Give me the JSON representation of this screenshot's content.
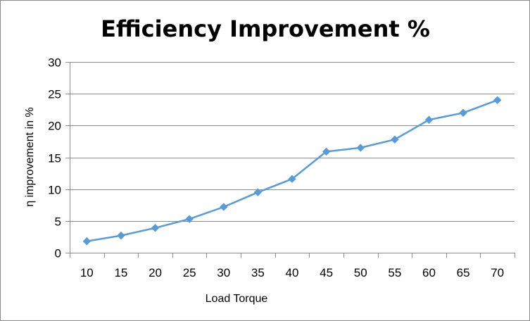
{
  "chart_data": {
    "type": "line",
    "title": "Efficiency Improvement %",
    "xlabel": "Load Torque",
    "ylabel": "η improvement in %",
    "categories": [
      "10",
      "15",
      "20",
      "25",
      "30",
      "35",
      "40",
      "45",
      "50",
      "55",
      "60",
      "65",
      "70"
    ],
    "series": [
      {
        "values": [
          1.8,
          2.7,
          3.9,
          5.3,
          7.2,
          9.5,
          11.6,
          15.9,
          16.5,
          17.8,
          20.9,
          22.0,
          24.0
        ],
        "color": "#5B9BD5",
        "marker": "diamond"
      }
    ],
    "ylim": [
      0,
      30
    ],
    "yticks": [
      "0",
      "5",
      "10",
      "15",
      "20",
      "25",
      "30"
    ],
    "grid": {
      "horizontal": true,
      "vertical": false
    },
    "legend": "none",
    "colors": {
      "gridline": "#8C8C8C",
      "axis": "#8C8C8C",
      "border": "#8C8C8C"
    }
  }
}
